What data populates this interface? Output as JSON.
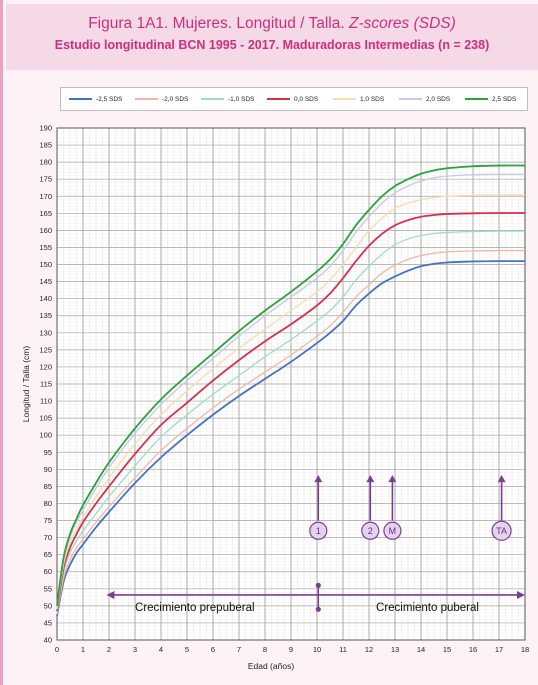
{
  "chart_data": {
    "type": "line",
    "title": "Figura 1A1. Mujeres. Longitud / Talla.",
    "title_italic": "Z-scores (SDS)",
    "subtitle": "Estudio longitudinal BCN 1995 - 2017. Maduradoras Intermedias (n = 238)",
    "xlabel": "Edad (años)",
    "ylabel": "Longitud / Talla (cm)",
    "xlim": [
      0,
      18
    ],
    "ylim": [
      40,
      190
    ],
    "x_ticks": [
      0,
      1,
      2,
      3,
      4,
      5,
      6,
      7,
      8,
      9,
      10,
      11,
      12,
      13,
      14,
      15,
      16,
      17,
      18
    ],
    "y_ticks": [
      40,
      45,
      50,
      55,
      60,
      65,
      70,
      75,
      80,
      85,
      90,
      95,
      100,
      105,
      110,
      115,
      120,
      125,
      130,
      135,
      140,
      145,
      150,
      155,
      160,
      165,
      170,
      175,
      180,
      185,
      190
    ],
    "grid": true,
    "legend_position": "top",
    "x": [
      0,
      0.25,
      0.5,
      0.75,
      1,
      1.5,
      2,
      3,
      4,
      5,
      6,
      7,
      8,
      9,
      10,
      10.5,
      11,
      11.5,
      12,
      12.5,
      13,
      13.5,
      14,
      14.5,
      15,
      16,
      17,
      18
    ],
    "series": [
      {
        "name": "-2,5 SDS",
        "color": "#4472c4",
        "values": [
          47,
          57,
          62,
          65.5,
          68,
          73,
          77.5,
          86,
          93.5,
          100,
          106,
          111.5,
          116.5,
          121.5,
          127,
          130,
          133.5,
          138,
          141.5,
          144.5,
          146.5,
          148.2,
          149.5,
          150.2,
          150.6,
          150.9,
          151,
          151
        ]
      },
      {
        "name": "-2,0 SDS",
        "color": "#f0b8a0",
        "values": [
          47.5,
          58,
          63.5,
          67,
          69.5,
          74.5,
          79,
          87.5,
          95.5,
          102,
          108,
          113.5,
          118.5,
          123.5,
          129,
          132,
          136,
          140.5,
          144,
          147.5,
          149.8,
          151.5,
          152.6,
          153.3,
          153.7,
          154,
          154.1,
          154.1
        ]
      },
      {
        "name": "-1,0 SDS",
        "color": "#9fdcc8",
        "values": [
          48,
          59.5,
          65.5,
          69,
          72,
          77,
          82,
          91,
          99.5,
          106,
          112,
          117.5,
          123,
          128,
          133.5,
          136.5,
          140.5,
          145.5,
          149.5,
          153,
          155.8,
          157.5,
          158.5,
          159.1,
          159.4,
          159.7,
          159.8,
          159.8
        ]
      },
      {
        "name": "0,0 SDS",
        "color": "#d7304a",
        "values": [
          48.5,
          61,
          67,
          71,
          74.5,
          80,
          85,
          94.5,
          103,
          109.5,
          116,
          122,
          127.5,
          132.5,
          138,
          141.5,
          146,
          151,
          155.5,
          159,
          161.5,
          163,
          164,
          164.5,
          164.8,
          165,
          165.1,
          165.1
        ]
      },
      {
        "name": "1,0 SDS",
        "color": "#f6dcae",
        "values": [
          49,
          62,
          68.5,
          72.5,
          76,
          82,
          87.5,
          97.5,
          106,
          113,
          119.5,
          125.5,
          131,
          136.5,
          142,
          145.5,
          150,
          155,
          160,
          163.5,
          166.5,
          168,
          169,
          169.6,
          170,
          170.3,
          170.4,
          170.4
        ]
      },
      {
        "name": "2,0 SDS",
        "color": "#c9c6e6",
        "values": [
          49.5,
          63,
          70,
          74.5,
          78,
          84.5,
          90.5,
          100.5,
          109,
          116,
          122.5,
          129,
          135,
          140.5,
          146,
          149.5,
          154,
          159.5,
          164,
          168,
          171,
          173,
          174.5,
          175.4,
          175.9,
          176.3,
          176.4,
          176.4
        ]
      },
      {
        "name": "2,5 SDS",
        "color": "#2aa33a",
        "values": [
          50,
          64,
          71,
          75.5,
          79.5,
          86,
          92,
          102,
          110.5,
          117.5,
          124,
          130.5,
          136.5,
          142,
          148,
          151.5,
          156,
          161.5,
          166,
          170,
          173,
          175,
          176.6,
          177.6,
          178.2,
          178.8,
          179,
          179
        ]
      }
    ],
    "markers": [
      {
        "label": "1",
        "x": 10.05
      },
      {
        "label": "2",
        "x": 12.05
      },
      {
        "label": "M",
        "x": 12.9
      },
      {
        "label": "TA",
        "x": 17.1
      }
    ],
    "phases": [
      {
        "label": "Crecimiento prepuberal",
        "from": 1.9,
        "to": 10.05
      },
      {
        "label": "Crecimiento puberal",
        "from": 10.05,
        "to": 18
      }
    ]
  }
}
